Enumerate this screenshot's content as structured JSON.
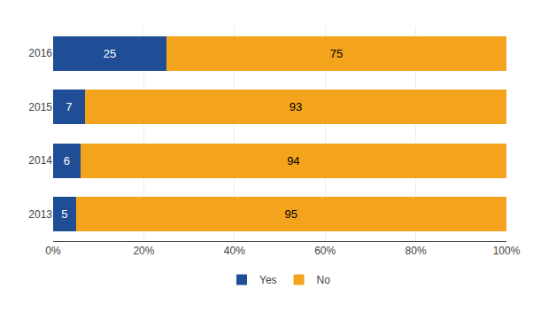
{
  "chart_data": {
    "type": "bar",
    "orientation": "horizontal",
    "stacked": true,
    "categories": [
      "2016",
      "2015",
      "2014",
      "2013"
    ],
    "series": [
      {
        "name": "Yes",
        "color": "#1F4E96",
        "values": [
          25,
          7,
          6,
          5
        ]
      },
      {
        "name": "No",
        "color": "#F4A41C",
        "values": [
          75,
          93,
          94,
          95
        ]
      }
    ],
    "xlim": [
      0,
      100
    ],
    "xticks": [
      {
        "value": 0,
        "label": "0%"
      },
      {
        "value": 20,
        "label": "20%"
      },
      {
        "value": 40,
        "label": "40%"
      },
      {
        "value": 60,
        "label": "60%"
      },
      {
        "value": 80,
        "label": "80%"
      },
      {
        "value": 100,
        "label": "100%"
      }
    ],
    "grid": true,
    "legend": "bottom",
    "data_labels": true
  }
}
